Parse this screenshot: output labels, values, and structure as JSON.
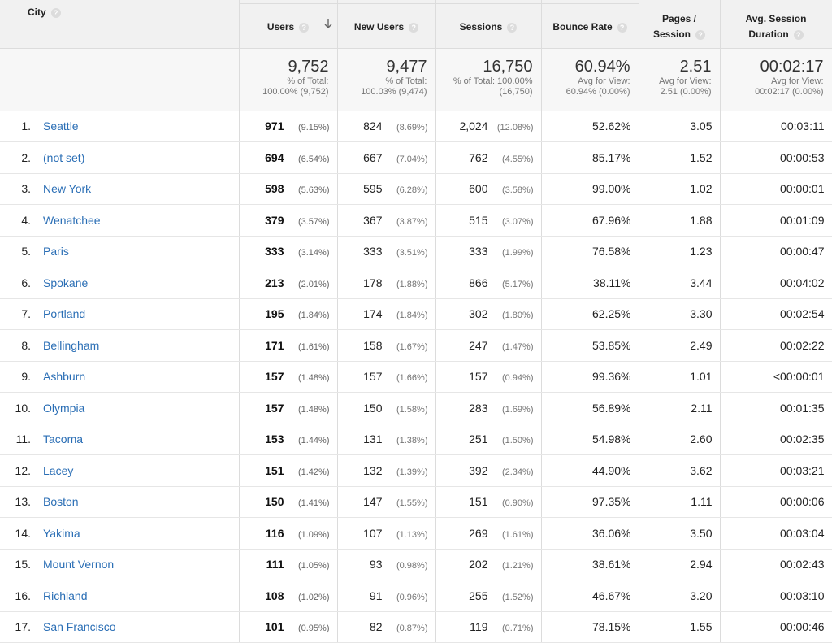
{
  "headers": {
    "city": "City",
    "users": "Users",
    "new_users": "New Users",
    "sessions": "Sessions",
    "bounce_rate": "Bounce Rate",
    "pages_line1": "Pages /",
    "pages_line2": "Session",
    "duration_line1": "Avg. Session",
    "duration_line2": "Duration",
    "help": "?"
  },
  "totals": {
    "users": {
      "value": "9,752",
      "l1": "% of Total:",
      "l2": "100.00% (9,752)"
    },
    "new_users": {
      "value": "9,477",
      "l1": "% of Total:",
      "l2": "100.03% (9,474)"
    },
    "sessions": {
      "value": "16,750",
      "l1": "% of Total: 100.00%",
      "l2": "(16,750)"
    },
    "bounce_rate": {
      "value": "60.94%",
      "l1": "Avg for View:",
      "l2": "60.94% (0.00%)"
    },
    "pages": {
      "value": "2.51",
      "l1": "Avg for View:",
      "l2": "2.51 (0.00%)"
    },
    "duration": {
      "value": "00:02:17",
      "l1": "Avg for View:",
      "l2": "00:02:17 (0.00%)"
    }
  },
  "rows": [
    {
      "rank": "1.",
      "city": "Seattle",
      "users": "971",
      "users_pct": "(9.15%)",
      "new_users": "824",
      "new_pct": "(8.69%)",
      "sessions": "2,024",
      "sess_pct": "(12.08%)",
      "bounce": "52.62%",
      "pages": "3.05",
      "duration": "00:03:11"
    },
    {
      "rank": "2.",
      "city": "(not set)",
      "users": "694",
      "users_pct": "(6.54%)",
      "new_users": "667",
      "new_pct": "(7.04%)",
      "sessions": "762",
      "sess_pct": "(4.55%)",
      "bounce": "85.17%",
      "pages": "1.52",
      "duration": "00:00:53"
    },
    {
      "rank": "3.",
      "city": "New York",
      "users": "598",
      "users_pct": "(5.63%)",
      "new_users": "595",
      "new_pct": "(6.28%)",
      "sessions": "600",
      "sess_pct": "(3.58%)",
      "bounce": "99.00%",
      "pages": "1.02",
      "duration": "00:00:01"
    },
    {
      "rank": "4.",
      "city": "Wenatchee",
      "users": "379",
      "users_pct": "(3.57%)",
      "new_users": "367",
      "new_pct": "(3.87%)",
      "sessions": "515",
      "sess_pct": "(3.07%)",
      "bounce": "67.96%",
      "pages": "1.88",
      "duration": "00:01:09"
    },
    {
      "rank": "5.",
      "city": "Paris",
      "users": "333",
      "users_pct": "(3.14%)",
      "new_users": "333",
      "new_pct": "(3.51%)",
      "sessions": "333",
      "sess_pct": "(1.99%)",
      "bounce": "76.58%",
      "pages": "1.23",
      "duration": "00:00:47"
    },
    {
      "rank": "6.",
      "city": "Spokane",
      "users": "213",
      "users_pct": "(2.01%)",
      "new_users": "178",
      "new_pct": "(1.88%)",
      "sessions": "866",
      "sess_pct": "(5.17%)",
      "bounce": "38.11%",
      "pages": "3.44",
      "duration": "00:04:02"
    },
    {
      "rank": "7.",
      "city": "Portland",
      "users": "195",
      "users_pct": "(1.84%)",
      "new_users": "174",
      "new_pct": "(1.84%)",
      "sessions": "302",
      "sess_pct": "(1.80%)",
      "bounce": "62.25%",
      "pages": "3.30",
      "duration": "00:02:54"
    },
    {
      "rank": "8.",
      "city": "Bellingham",
      "users": "171",
      "users_pct": "(1.61%)",
      "new_users": "158",
      "new_pct": "(1.67%)",
      "sessions": "247",
      "sess_pct": "(1.47%)",
      "bounce": "53.85%",
      "pages": "2.49",
      "duration": "00:02:22"
    },
    {
      "rank": "9.",
      "city": "Ashburn",
      "users": "157",
      "users_pct": "(1.48%)",
      "new_users": "157",
      "new_pct": "(1.66%)",
      "sessions": "157",
      "sess_pct": "(0.94%)",
      "bounce": "99.36%",
      "pages": "1.01",
      "duration": "<00:00:01"
    },
    {
      "rank": "10.",
      "city": "Olympia",
      "users": "157",
      "users_pct": "(1.48%)",
      "new_users": "150",
      "new_pct": "(1.58%)",
      "sessions": "283",
      "sess_pct": "(1.69%)",
      "bounce": "56.89%",
      "pages": "2.11",
      "duration": "00:01:35"
    },
    {
      "rank": "11.",
      "city": "Tacoma",
      "users": "153",
      "users_pct": "(1.44%)",
      "new_users": "131",
      "new_pct": "(1.38%)",
      "sessions": "251",
      "sess_pct": "(1.50%)",
      "bounce": "54.98%",
      "pages": "2.60",
      "duration": "00:02:35"
    },
    {
      "rank": "12.",
      "city": "Lacey",
      "users": "151",
      "users_pct": "(1.42%)",
      "new_users": "132",
      "new_pct": "(1.39%)",
      "sessions": "392",
      "sess_pct": "(2.34%)",
      "bounce": "44.90%",
      "pages": "3.62",
      "duration": "00:03:21"
    },
    {
      "rank": "13.",
      "city": "Boston",
      "users": "150",
      "users_pct": "(1.41%)",
      "new_users": "147",
      "new_pct": "(1.55%)",
      "sessions": "151",
      "sess_pct": "(0.90%)",
      "bounce": "97.35%",
      "pages": "1.11",
      "duration": "00:00:06"
    },
    {
      "rank": "14.",
      "city": "Yakima",
      "users": "116",
      "users_pct": "(1.09%)",
      "new_users": "107",
      "new_pct": "(1.13%)",
      "sessions": "269",
      "sess_pct": "(1.61%)",
      "bounce": "36.06%",
      "pages": "3.50",
      "duration": "00:03:04"
    },
    {
      "rank": "15.",
      "city": "Mount Vernon",
      "users": "111",
      "users_pct": "(1.05%)",
      "new_users": "93",
      "new_pct": "(0.98%)",
      "sessions": "202",
      "sess_pct": "(1.21%)",
      "bounce": "38.61%",
      "pages": "2.94",
      "duration": "00:02:43"
    },
    {
      "rank": "16.",
      "city": "Richland",
      "users": "108",
      "users_pct": "(1.02%)",
      "new_users": "91",
      "new_pct": "(0.96%)",
      "sessions": "255",
      "sess_pct": "(1.52%)",
      "bounce": "46.67%",
      "pages": "3.20",
      "duration": "00:03:10"
    },
    {
      "rank": "17.",
      "city": "San Francisco",
      "users": "101",
      "users_pct": "(0.95%)",
      "new_users": "82",
      "new_pct": "(0.87%)",
      "sessions": "119",
      "sess_pct": "(0.71%)",
      "bounce": "78.15%",
      "pages": "1.55",
      "duration": "00:00:46"
    }
  ]
}
